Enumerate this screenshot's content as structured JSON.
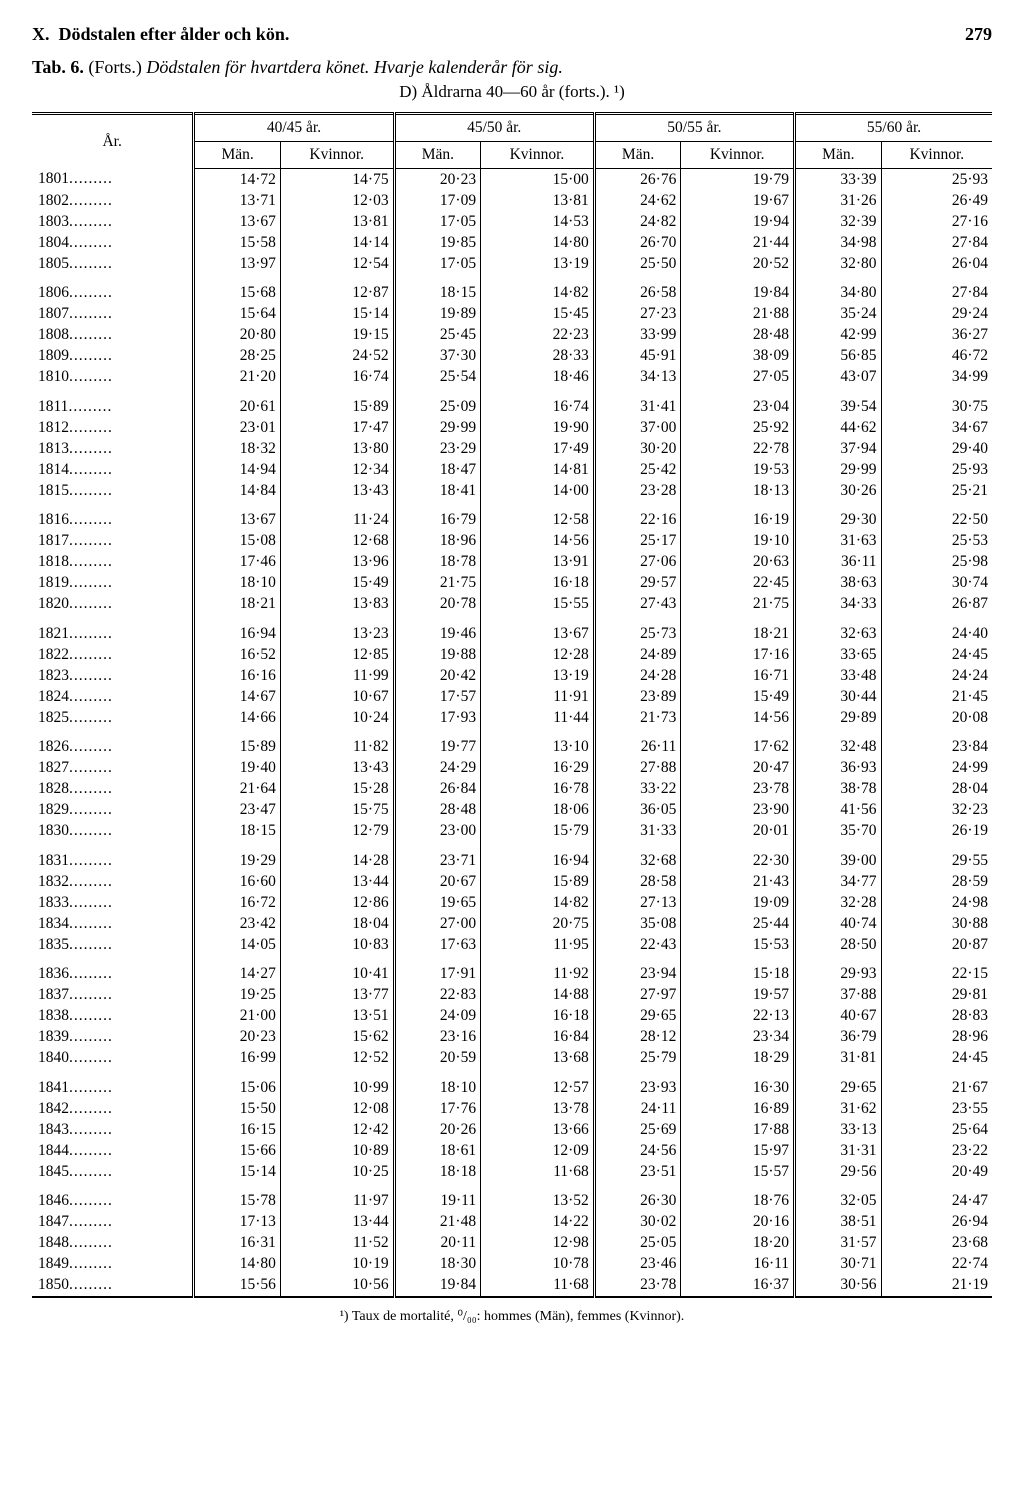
{
  "header": {
    "section": "X.",
    "title": "Dödstalen efter ålder och kön.",
    "page_number": "279"
  },
  "caption": {
    "tab": "Tab. 6.",
    "forts": "(Forts.)",
    "title_italic": "Dödstalen för hvartdera könet. Hvarje kalenderår för sig.",
    "sub": "D) Åldrarna 40—60 år (forts.). ¹)"
  },
  "columns": {
    "year": "År.",
    "groups": [
      "40/45 år.",
      "45/50 år.",
      "50/55 år.",
      "55/60 år."
    ],
    "man": "Män.",
    "kvinnor": "Kvinnor."
  },
  "blocks": [
    [
      {
        "y": "1801",
        "v": [
          "14·72",
          "14·75",
          "20·23",
          "15·00",
          "26·76",
          "19·79",
          "33·39",
          "25·93"
        ]
      },
      {
        "y": "1802",
        "v": [
          "13·71",
          "12·03",
          "17·09",
          "13·81",
          "24·62",
          "19·67",
          "31·26",
          "26·49"
        ]
      },
      {
        "y": "1803",
        "v": [
          "13·67",
          "13·81",
          "17·05",
          "14·53",
          "24·82",
          "19·94",
          "32·39",
          "27·16"
        ]
      },
      {
        "y": "1804",
        "v": [
          "15·58",
          "14·14",
          "19·85",
          "14·80",
          "26·70",
          "21·44",
          "34·98",
          "27·84"
        ]
      },
      {
        "y": "1805",
        "v": [
          "13·97",
          "12·54",
          "17·05",
          "13·19",
          "25·50",
          "20·52",
          "32·80",
          "26·04"
        ]
      }
    ],
    [
      {
        "y": "1806",
        "v": [
          "15·68",
          "12·87",
          "18·15",
          "14·82",
          "26·58",
          "19·84",
          "34·80",
          "27·84"
        ]
      },
      {
        "y": "1807",
        "v": [
          "15·64",
          "15·14",
          "19·89",
          "15·45",
          "27·23",
          "21·88",
          "35·24",
          "29·24"
        ]
      },
      {
        "y": "1808",
        "v": [
          "20·80",
          "19·15",
          "25·45",
          "22·23",
          "33·99",
          "28·48",
          "42·99",
          "36·27"
        ]
      },
      {
        "y": "1809",
        "v": [
          "28·25",
          "24·52",
          "37·30",
          "28·33",
          "45·91",
          "38·09",
          "56·85",
          "46·72"
        ]
      },
      {
        "y": "1810",
        "v": [
          "21·20",
          "16·74",
          "25·54",
          "18·46",
          "34·13",
          "27·05",
          "43·07",
          "34·99"
        ]
      }
    ],
    [
      {
        "y": "1811",
        "v": [
          "20·61",
          "15·89",
          "25·09",
          "16·74",
          "31·41",
          "23·04",
          "39·54",
          "30·75"
        ]
      },
      {
        "y": "1812",
        "v": [
          "23·01",
          "17·47",
          "29·99",
          "19·90",
          "37·00",
          "25·92",
          "44·62",
          "34·67"
        ]
      },
      {
        "y": "1813",
        "v": [
          "18·32",
          "13·80",
          "23·29",
          "17·49",
          "30·20",
          "22·78",
          "37·94",
          "29·40"
        ]
      },
      {
        "y": "1814",
        "v": [
          "14·94",
          "12·34",
          "18·47",
          "14·81",
          "25·42",
          "19·53",
          "29·99",
          "25·93"
        ]
      },
      {
        "y": "1815",
        "v": [
          "14·84",
          "13·43",
          "18·41",
          "14·00",
          "23·28",
          "18·13",
          "30·26",
          "25·21"
        ]
      }
    ],
    [
      {
        "y": "1816",
        "v": [
          "13·67",
          "11·24",
          "16·79",
          "12·58",
          "22·16",
          "16·19",
          "29·30",
          "22·50"
        ]
      },
      {
        "y": "1817",
        "v": [
          "15·08",
          "12·68",
          "18·96",
          "14·56",
          "25·17",
          "19·10",
          "31·63",
          "25·53"
        ]
      },
      {
        "y": "1818",
        "v": [
          "17·46",
          "13·96",
          "18·78",
          "13·91",
          "27·06",
          "20·63",
          "36·11",
          "25·98"
        ]
      },
      {
        "y": "1819",
        "v": [
          "18·10",
          "15·49",
          "21·75",
          "16·18",
          "29·57",
          "22·45",
          "38·63",
          "30·74"
        ]
      },
      {
        "y": "1820",
        "v": [
          "18·21",
          "13·83",
          "20·78",
          "15·55",
          "27·43",
          "21·75",
          "34·33",
          "26·87"
        ]
      }
    ],
    [
      {
        "y": "1821",
        "v": [
          "16·94",
          "13·23",
          "19·46",
          "13·67",
          "25·73",
          "18·21",
          "32·63",
          "24·40"
        ]
      },
      {
        "y": "1822",
        "v": [
          "16·52",
          "12·85",
          "19·88",
          "12·28",
          "24·89",
          "17·16",
          "33·65",
          "24·45"
        ]
      },
      {
        "y": "1823",
        "v": [
          "16·16",
          "11·99",
          "20·42",
          "13·19",
          "24·28",
          "16·71",
          "33·48",
          "24·24"
        ]
      },
      {
        "y": "1824",
        "v": [
          "14·67",
          "10·67",
          "17·57",
          "11·91",
          "23·89",
          "15·49",
          "30·44",
          "21·45"
        ]
      },
      {
        "y": "1825",
        "v": [
          "14·66",
          "10·24",
          "17·93",
          "11·44",
          "21·73",
          "14·56",
          "29·89",
          "20·08"
        ]
      }
    ],
    [
      {
        "y": "1826",
        "v": [
          "15·89",
          "11·82",
          "19·77",
          "13·10",
          "26·11",
          "17·62",
          "32·48",
          "23·84"
        ]
      },
      {
        "y": "1827",
        "v": [
          "19·40",
          "13·43",
          "24·29",
          "16·29",
          "27·88",
          "20·47",
          "36·93",
          "24·99"
        ]
      },
      {
        "y": "1828",
        "v": [
          "21·64",
          "15·28",
          "26·84",
          "16·78",
          "33·22",
          "23·78",
          "38·78",
          "28·04"
        ]
      },
      {
        "y": "1829",
        "v": [
          "23·47",
          "15·75",
          "28·48",
          "18·06",
          "36·05",
          "23·90",
          "41·56",
          "32·23"
        ]
      },
      {
        "y": "1830",
        "v": [
          "18·15",
          "12·79",
          "23·00",
          "15·79",
          "31·33",
          "20·01",
          "35·70",
          "26·19"
        ]
      }
    ],
    [
      {
        "y": "1831",
        "v": [
          "19·29",
          "14·28",
          "23·71",
          "16·94",
          "32·68",
          "22·30",
          "39·00",
          "29·55"
        ]
      },
      {
        "y": "1832",
        "v": [
          "16·60",
          "13·44",
          "20·67",
          "15·89",
          "28·58",
          "21·43",
          "34·77",
          "28·59"
        ]
      },
      {
        "y": "1833",
        "v": [
          "16·72",
          "12·86",
          "19·65",
          "14·82",
          "27·13",
          "19·09",
          "32·28",
          "24·98"
        ]
      },
      {
        "y": "1834",
        "v": [
          "23·42",
          "18·04",
          "27·00",
          "20·75",
          "35·08",
          "25·44",
          "40·74",
          "30·88"
        ]
      },
      {
        "y": "1835",
        "v": [
          "14·05",
          "10·83",
          "17·63",
          "11·95",
          "22·43",
          "15·53",
          "28·50",
          "20·87"
        ]
      }
    ],
    [
      {
        "y": "1836",
        "v": [
          "14·27",
          "10·41",
          "17·91",
          "11·92",
          "23·94",
          "15·18",
          "29·93",
          "22·15"
        ]
      },
      {
        "y": "1837",
        "v": [
          "19·25",
          "13·77",
          "22·83",
          "14·88",
          "27·97",
          "19·57",
          "37·88",
          "29·81"
        ]
      },
      {
        "y": "1838",
        "v": [
          "21·00",
          "13·51",
          "24·09",
          "16·18",
          "29·65",
          "22·13",
          "40·67",
          "28·83"
        ]
      },
      {
        "y": "1839",
        "v": [
          "20·23",
          "15·62",
          "23·16",
          "16·84",
          "28·12",
          "23·34",
          "36·79",
          "28·96"
        ]
      },
      {
        "y": "1840",
        "v": [
          "16·99",
          "12·52",
          "20·59",
          "13·68",
          "25·79",
          "18·29",
          "31·81",
          "24·45"
        ]
      }
    ],
    [
      {
        "y": "1841",
        "v": [
          "15·06",
          "10·99",
          "18·10",
          "12·57",
          "23·93",
          "16·30",
          "29·65",
          "21·67"
        ]
      },
      {
        "y": "1842",
        "v": [
          "15·50",
          "12·08",
          "17·76",
          "13·78",
          "24·11",
          "16·89",
          "31·62",
          "23·55"
        ]
      },
      {
        "y": "1843",
        "v": [
          "16·15",
          "12·42",
          "20·26",
          "13·66",
          "25·69",
          "17·88",
          "33·13",
          "25·64"
        ]
      },
      {
        "y": "1844",
        "v": [
          "15·66",
          "10·89",
          "18·61",
          "12·09",
          "24·56",
          "15·97",
          "31·31",
          "23·22"
        ]
      },
      {
        "y": "1845",
        "v": [
          "15·14",
          "10·25",
          "18·18",
          "11·68",
          "23·51",
          "15·57",
          "29·56",
          "20·49"
        ]
      }
    ],
    [
      {
        "y": "1846",
        "v": [
          "15·78",
          "11·97",
          "19·11",
          "13·52",
          "26·30",
          "18·76",
          "32·05",
          "24·47"
        ]
      },
      {
        "y": "1847",
        "v": [
          "17·13",
          "13·44",
          "21·48",
          "14·22",
          "30·02",
          "20·16",
          "38·51",
          "26·94"
        ]
      },
      {
        "y": "1848",
        "v": [
          "16·31",
          "11·52",
          "20·11",
          "12·98",
          "25·05",
          "18·20",
          "31·57",
          "23·68"
        ]
      },
      {
        "y": "1849",
        "v": [
          "14·80",
          "10·19",
          "18·30",
          "10·78",
          "23·46",
          "16·11",
          "30·71",
          "22·74"
        ]
      },
      {
        "y": "1850",
        "v": [
          "15·56",
          "10·56",
          "19·84",
          "11·68",
          "23·78",
          "16·37",
          "30·56",
          "21·19"
        ]
      }
    ]
  ],
  "footnote": "¹) Taux de mortalité, ⁰/₀₀: hommes (Män), femmes (Kvinnor)."
}
